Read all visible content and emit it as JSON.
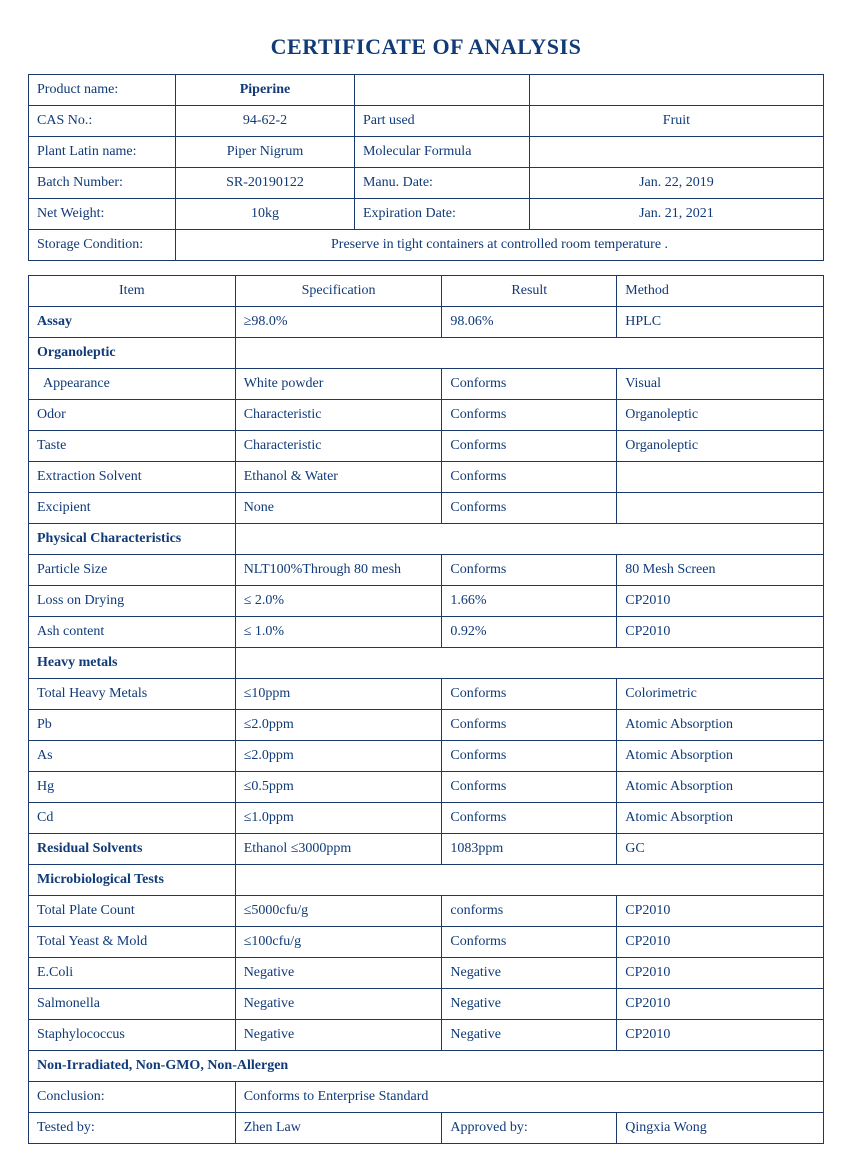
{
  "title": "CERTIFICATE OF ANALYSIS",
  "info": {
    "product_name_label": "Product name:",
    "product_name": "Piperine",
    "cas_label": "CAS No.:",
    "cas": "94-62-2",
    "part_used_label": "Part used",
    "part_used": "Fruit",
    "latin_label": "Plant Latin name:",
    "latin": "Piper Nigrum",
    "mol_formula_label": "Molecular Formula",
    "mol_formula": "",
    "batch_label": "Batch Number:",
    "batch": "SR-20190122",
    "manu_date_label": "Manu. Date:",
    "manu_date": "Jan. 22, 2019",
    "netwt_label": "Net Weight:",
    "netwt": "10kg",
    "exp_label": "Expiration Date:",
    "exp": "Jan. 21, 2021",
    "storage_label": "Storage Condition:",
    "storage": "Preserve in tight containers at controlled room temperature ."
  },
  "spec_header": {
    "item": "Item",
    "spec": "Specification",
    "result": "Result",
    "method": "Method"
  },
  "spec_rows": [
    {
      "item": "Assay",
      "spec": "≥98.0%",
      "result": "98.06%",
      "method": "HPLC",
      "style": "bold"
    },
    {
      "item": "Organoleptic",
      "style": "section"
    },
    {
      "item": "Appearance",
      "spec": "White powder",
      "result": "Conforms",
      "method": "Visual",
      "style": "indent"
    },
    {
      "item": "Odor",
      "spec": "Characteristic",
      "result": "Conforms",
      "method": "Organoleptic"
    },
    {
      "item": "Taste",
      "spec": "Characteristic",
      "result": "Conforms",
      "method": "Organoleptic"
    },
    {
      "item": "Extraction Solvent",
      "spec": "Ethanol & Water",
      "result": "Conforms",
      "method": ""
    },
    {
      "item": "Excipient",
      "spec": "None",
      "result": "Conforms",
      "method": ""
    },
    {
      "item": "Physical Characteristics",
      "style": "section"
    },
    {
      "item": "Particle Size",
      "spec": "NLT100%Through 80 mesh",
      "result": "Conforms",
      "method": "80 Mesh Screen"
    },
    {
      "item": "Loss on Drying",
      "spec": "≤ 2.0%",
      "result": "1.66%",
      "method": "CP2010"
    },
    {
      "item": "Ash content",
      "spec": "≤ 1.0%",
      "result": "0.92%",
      "method": "CP2010"
    },
    {
      "item": "Heavy metals",
      "style": "section"
    },
    {
      "item": "Total Heavy Metals",
      "spec": "≤10ppm",
      "result": "Conforms",
      "method": "Colorimetric"
    },
    {
      "item": "Pb",
      "spec": "≤2.0ppm",
      "result": "Conforms",
      "method": "Atomic Absorption"
    },
    {
      "item": "As",
      "spec": "≤2.0ppm",
      "result": "Conforms",
      "method": "Atomic Absorption"
    },
    {
      "item": "Hg",
      "spec": "≤0.5ppm",
      "result": "Conforms",
      "method": "Atomic Absorption"
    },
    {
      "item": "Cd",
      "spec": "≤1.0ppm",
      "result": "Conforms",
      "method": "Atomic Absorption"
    },
    {
      "item": "Residual Solvents",
      "spec": "Ethanol ≤3000ppm",
      "result": "1083ppm",
      "method": "GC",
      "style": "bold"
    },
    {
      "item": "Microbiological Tests",
      "style": "section"
    },
    {
      "item": "Total Plate Count",
      "spec": "≤5000cfu/g",
      "result": "conforms",
      "method": "CP2010"
    },
    {
      "item": "Total Yeast & Mold",
      "spec": "≤100cfu/g",
      "result": "Conforms",
      "method": "CP2010"
    },
    {
      "item": "E.Coli",
      "spec": "Negative",
      "result": "Negative",
      "method": "CP2010"
    },
    {
      "item": "Salmonella",
      "spec": "Negative",
      "result": "Negative",
      "method": "CP2010"
    },
    {
      "item": "Staphylococcus",
      "spec": "Negative",
      "result": "Negative",
      "method": "CP2010"
    },
    {
      "item": "Non-Irradiated, Non-GMO, Non-Allergen",
      "style": "fullsection"
    }
  ],
  "footer": {
    "conclusion_label": "Conclusion:",
    "conclusion": "Conforms to Enterprise Standard",
    "tested_label": "Tested by:",
    "tested": "Zhen Law",
    "approved_label": "Approved by:",
    "approved": "Qingxia Wong"
  }
}
